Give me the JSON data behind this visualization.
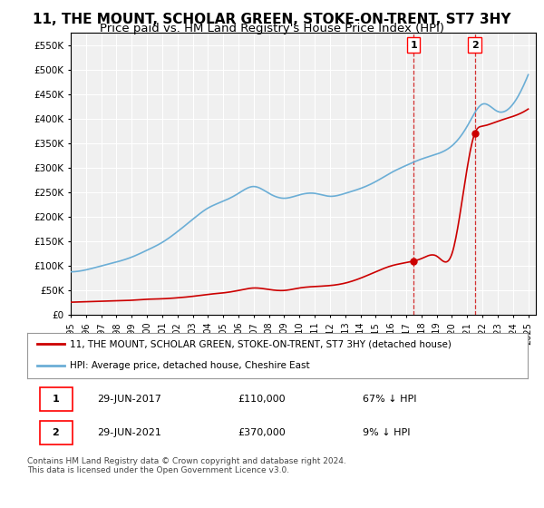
{
  "title": "11, THE MOUNT, SCHOLAR GREEN, STOKE-ON-TRENT, ST7 3HY",
  "subtitle": "Price paid vs. HM Land Registry's House Price Index (HPI)",
  "title_fontsize": 11,
  "subtitle_fontsize": 9.5,
  "ylim": [
    0,
    575000
  ],
  "yticks": [
    0,
    50000,
    100000,
    150000,
    200000,
    250000,
    300000,
    350000,
    400000,
    450000,
    500000,
    550000
  ],
  "ytick_labels": [
    "£0",
    "£50K",
    "£100K",
    "£150K",
    "£200K",
    "£250K",
    "£300K",
    "£350K",
    "£400K",
    "£450K",
    "£500K",
    "£550K"
  ],
  "xlim_start": 1995.0,
  "xlim_end": 2025.5,
  "xtick_years": [
    1995,
    1996,
    1997,
    1998,
    1999,
    2000,
    2001,
    2002,
    2003,
    2004,
    2005,
    2006,
    2007,
    2008,
    2009,
    2010,
    2011,
    2012,
    2013,
    2014,
    2015,
    2016,
    2017,
    2018,
    2019,
    2020,
    2021,
    2022,
    2023,
    2024,
    2025
  ],
  "hpi_color": "#6baed6",
  "price_color": "#cc0000",
  "point1_x": 2017.49,
  "point1_y": 110000,
  "point2_x": 2021.49,
  "point2_y": 370000,
  "point_marker_color": "#cc0000",
  "vline_color": "#cc0000",
  "legend_line1": "11, THE MOUNT, SCHOLAR GREEN, STOKE-ON-TRENT, ST7 3HY (detached house)",
  "legend_line2": "HPI: Average price, detached house, Cheshire East",
  "table_row1": [
    "1",
    "29-JUN-2017",
    "£110,000",
    "67% ↓ HPI"
  ],
  "table_row2": [
    "2",
    "29-JUN-2021",
    "£370,000",
    "9% ↓ HPI"
  ],
  "footnote": "Contains HM Land Registry data © Crown copyright and database right 2024.\nThis data is licensed under the Open Government Licence v3.0.",
  "bg_color": "#ffffff",
  "plot_bg_color": "#f0f0f0",
  "grid_color": "#ffffff"
}
